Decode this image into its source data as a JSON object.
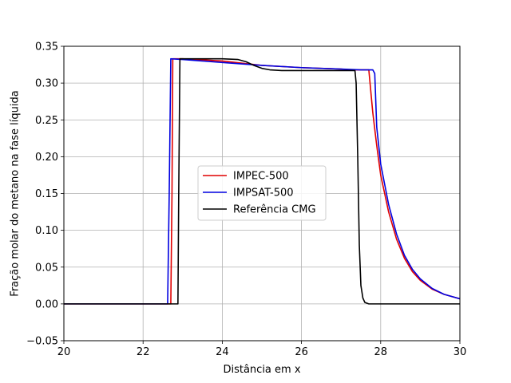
{
  "chart_data": {
    "type": "line",
    "title": "",
    "xlabel": "Distância em x",
    "ylabel": "Fração molar do metano na fase líquida",
    "xlim": [
      20,
      30
    ],
    "ylim": [
      -0.05,
      0.35
    ],
    "xticks": [
      "20",
      "22",
      "24",
      "26",
      "28",
      "30"
    ],
    "yticks": [
      "−0.05",
      "0.00",
      "0.05",
      "0.10",
      "0.15",
      "0.20",
      "0.25",
      "0.30",
      "0.35"
    ],
    "grid": true,
    "legend_position": "center",
    "series": [
      {
        "name": "IMPEC-500",
        "color": "#e00000",
        "x": [
          20,
          22.7,
          22.73,
          22.75,
          23,
          24,
          25,
          26,
          27,
          27.2,
          27.5,
          27.7,
          27.8,
          27.9,
          28.0,
          28.2,
          28.4,
          28.6,
          28.8,
          29.0,
          29.3,
          29.6,
          30.0
        ],
        "y": [
          0,
          0,
          0.15,
          0.333,
          0.333,
          0.33,
          0.324,
          0.321,
          0.319,
          0.318,
          0.318,
          0.318,
          0.26,
          0.215,
          0.175,
          0.125,
          0.088,
          0.062,
          0.044,
          0.032,
          0.02,
          0.013,
          0.007
        ]
      },
      {
        "name": "IMPSAT-500",
        "color": "#0000e0",
        "x": [
          20,
          22.62,
          22.66,
          22.7,
          23,
          24,
          25,
          26,
          27,
          27.5,
          27.8,
          27.85,
          27.9,
          28.0,
          28.2,
          28.4,
          28.6,
          28.8,
          29.0,
          29.3,
          29.6,
          30.0
        ],
        "y": [
          0,
          0,
          0.15,
          0.333,
          0.332,
          0.328,
          0.324,
          0.321,
          0.319,
          0.318,
          0.318,
          0.313,
          0.24,
          0.19,
          0.135,
          0.095,
          0.066,
          0.047,
          0.034,
          0.021,
          0.013,
          0.007
        ]
      },
      {
        "name": "Referência CMG",
        "color": "#000000",
        "x": [
          20,
          22.88,
          22.9,
          22.93,
          23.2,
          24.0,
          24.4,
          24.6,
          24.8,
          25.0,
          25.2,
          25.5,
          26.0,
          27.0,
          27.35,
          27.38,
          27.42,
          27.46,
          27.5,
          27.55,
          27.6,
          27.7,
          30
        ],
        "y": [
          0,
          0,
          0.15,
          0.333,
          0.333,
          0.333,
          0.332,
          0.329,
          0.324,
          0.32,
          0.318,
          0.317,
          0.317,
          0.317,
          0.317,
          0.3,
          0.2,
          0.08,
          0.025,
          0.008,
          0.002,
          0,
          0
        ]
      }
    ]
  }
}
